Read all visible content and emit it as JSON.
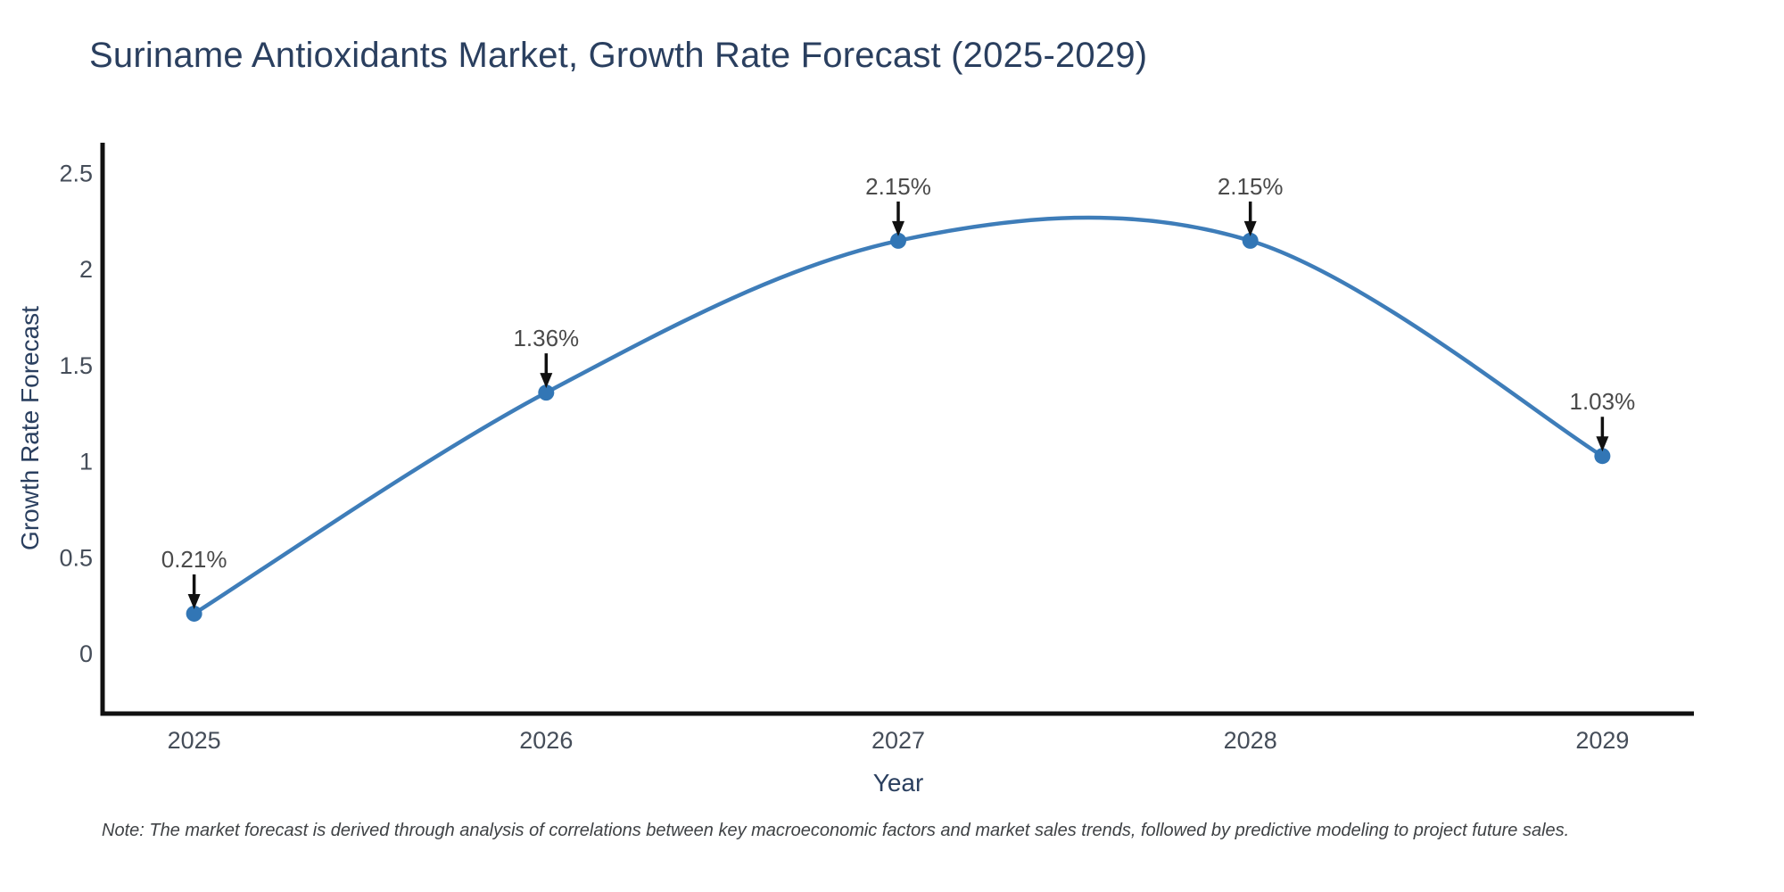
{
  "page": {
    "background": "#ffffff"
  },
  "chart_data": {
    "type": "line",
    "title": "Suriname Antioxidants Market, Growth Rate Forecast (2025-2029)",
    "xlabel": "Year",
    "ylabel": "Growth Rate Forecast",
    "x": [
      2025,
      2026,
      2027,
      2028,
      2029
    ],
    "series": [
      {
        "name": "Growth Rate Forecast",
        "values": [
          0.21,
          1.36,
          2.15,
          2.15,
          1.03
        ]
      }
    ],
    "point_labels": [
      "0.21%",
      "1.36%",
      "2.15%",
      "2.15%",
      "1.03%"
    ],
    "line_shape": "spline",
    "x_tick_labels": [
      "2025",
      "2026",
      "2027",
      "2028",
      "2029"
    ],
    "y_ticks": [
      0,
      0.5,
      1,
      1.5,
      2,
      2.5
    ],
    "y_tick_labels": [
      "0",
      "0.5",
      "1",
      "1.5",
      "2",
      "2.5"
    ],
    "xlim": [
      2024.74,
      2029.26
    ],
    "ylim": [
      -0.31,
      2.66
    ],
    "grid": false,
    "legend": false,
    "colors": {
      "line": "#3e7db9",
      "marker": "#3276b5",
      "axis": "#111111",
      "tick_label": "#454d59",
      "axis_title": "#2a3f5f",
      "title": "#2a3f5f",
      "annotation_text": "#4a4a4a",
      "arrow": "#111111"
    }
  },
  "note": "Note: The market forecast is derived through analysis of correlations between key macroeconomic factors and market sales trends, followed by predictive modeling to project future sales."
}
